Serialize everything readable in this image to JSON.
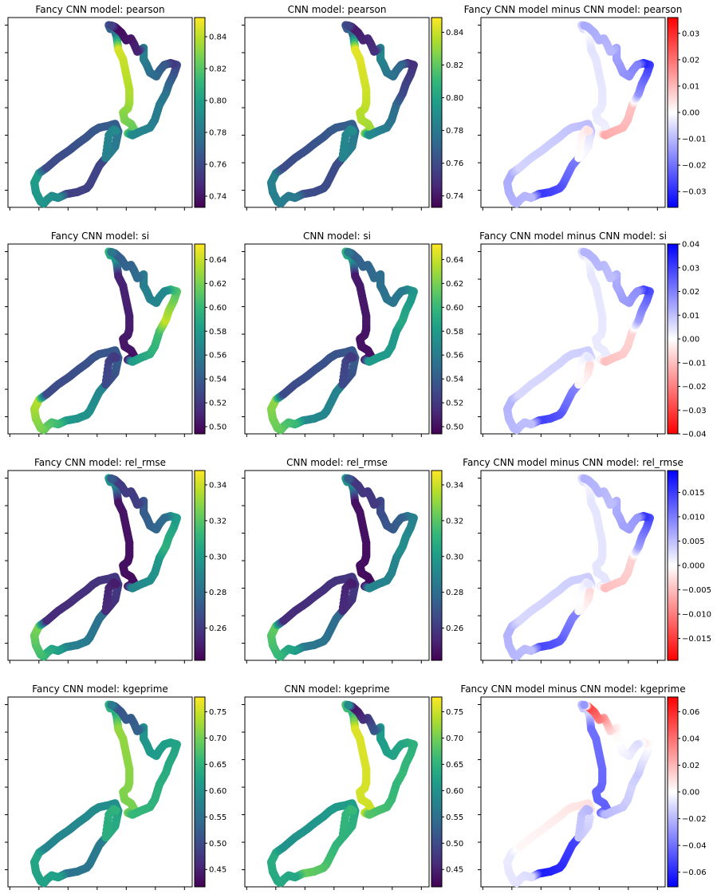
{
  "figure": {
    "colormaps": {
      "viridis": [
        "#440154",
        "#482878",
        "#3e4989",
        "#31688e",
        "#26828e",
        "#1f9e89",
        "#35b779",
        "#6ece58",
        "#b5de2b",
        "#fde725"
      ],
      "bwr": [
        "#ff0000",
        "#ffffff",
        "#0000ff"
      ]
    }
  },
  "chart_data": [
    {
      "type": "scatter",
      "title": "Fancy CNN model: pearson",
      "metric": "pearson",
      "colormap": "viridis",
      "clim": [
        0.733,
        0.852
      ],
      "colorbar_ticks": [
        "0.74",
        "0.76",
        "0.78",
        "0.80",
        "0.82",
        "0.84"
      ],
      "colorbar_tick_values": [
        0.74,
        0.76,
        0.78,
        0.8,
        0.82,
        0.84
      ],
      "segments": [
        {
          "from": 0,
          "to": 4,
          "start": 0.76,
          "end": 0.79
        },
        {
          "from": 4,
          "to": 15,
          "start": 0.845,
          "end": 0.82
        },
        {
          "from": 15,
          "to": 20,
          "start": 0.79,
          "end": 0.78
        },
        {
          "from": 20,
          "to": 25,
          "start": 0.78,
          "end": 0.745
        },
        {
          "from": 25,
          "to": 32,
          "start": 0.765,
          "end": 0.79
        },
        {
          "from": 32,
          "to": 38,
          "start": 0.745,
          "end": 0.735
        },
        {
          "from": 38,
          "to": 48,
          "start": 0.76,
          "end": 0.755
        },
        {
          "from": 48,
          "to": 56,
          "start": 0.79,
          "end": 0.8
        },
        {
          "from": 56,
          "to": 66,
          "start": 0.76,
          "end": 0.77
        },
        {
          "from": 66,
          "to": 72,
          "start": 0.78,
          "end": 0.79
        }
      ]
    },
    {
      "type": "scatter",
      "title": "CNN model: pearson",
      "metric": "pearson",
      "colormap": "viridis",
      "clim": [
        0.733,
        0.849
      ],
      "colorbar_ticks": [
        "0.74",
        "0.76",
        "0.78",
        "0.80",
        "0.82",
        "0.84"
      ],
      "colorbar_tick_values": [
        0.74,
        0.76,
        0.78,
        0.8,
        0.82,
        0.84
      ],
      "segments": [
        {
          "from": 0,
          "to": 4,
          "start": 0.76,
          "end": 0.78
        },
        {
          "from": 4,
          "to": 15,
          "start": 0.845,
          "end": 0.83
        },
        {
          "from": 15,
          "to": 20,
          "start": 0.79,
          "end": 0.77
        },
        {
          "from": 20,
          "to": 25,
          "start": 0.76,
          "end": 0.745
        },
        {
          "from": 25,
          "to": 32,
          "start": 0.77,
          "end": 0.79
        },
        {
          "from": 32,
          "to": 38,
          "start": 0.75,
          "end": 0.74
        },
        {
          "from": 38,
          "to": 48,
          "start": 0.76,
          "end": 0.76
        },
        {
          "from": 48,
          "to": 56,
          "start": 0.78,
          "end": 0.785
        },
        {
          "from": 56,
          "to": 66,
          "start": 0.76,
          "end": 0.77
        },
        {
          "from": 66,
          "to": 72,
          "start": 0.78,
          "end": 0.79
        }
      ]
    },
    {
      "type": "scatter",
      "title": "Fancy CNN model minus CNN model: pearson",
      "metric": "pearson",
      "colormap": "bwr",
      "clim": [
        -0.036,
        0.036
      ],
      "colorbar_ticks": [
        "−0.03",
        "−0.02",
        "−0.01",
        "0.00",
        "0.01",
        "0.02",
        "0.03"
      ],
      "colorbar_tick_values": [
        -0.03,
        -0.02,
        -0.01,
        0.0,
        0.01,
        0.02,
        0.03
      ],
      "segments": [
        {
          "from": 0,
          "to": 4,
          "start": -0.008,
          "end": 0.002
        },
        {
          "from": 4,
          "to": 15,
          "start": -0.004,
          "end": -0.002
        },
        {
          "from": 15,
          "to": 20,
          "start": 0.012,
          "end": 0.008
        },
        {
          "from": 20,
          "to": 25,
          "start": -0.015,
          "end": -0.035
        },
        {
          "from": 25,
          "to": 32,
          "start": -0.018,
          "end": -0.012
        },
        {
          "from": 32,
          "to": 38,
          "start": -0.01,
          "end": -0.012
        },
        {
          "from": 38,
          "to": 48,
          "start": -0.012,
          "end": -0.03
        },
        {
          "from": 48,
          "to": 56,
          "start": -0.01,
          "end": -0.012
        },
        {
          "from": 56,
          "to": 66,
          "start": -0.006,
          "end": -0.01
        },
        {
          "from": 66,
          "to": 72,
          "start": -0.004,
          "end": 0.004
        }
      ]
    },
    {
      "type": "scatter",
      "title": "Fancy CNN model: si",
      "metric": "si",
      "colormap": "viridis",
      "clim": [
        0.494,
        0.653
      ],
      "colorbar_ticks": [
        "0.50",
        "0.52",
        "0.54",
        "0.56",
        "0.58",
        "0.60",
        "0.62",
        "0.64"
      ],
      "colorbar_tick_values": [
        0.5,
        0.52,
        0.54,
        0.56,
        0.58,
        0.6,
        0.62,
        0.64
      ],
      "segments": [
        {
          "from": 0,
          "to": 4,
          "start": 0.6,
          "end": 0.57
        },
        {
          "from": 4,
          "to": 15,
          "start": 0.51,
          "end": 0.5
        },
        {
          "from": 15,
          "to": 20,
          "start": 0.58,
          "end": 0.61
        },
        {
          "from": 20,
          "to": 25,
          "start": 0.64,
          "end": 0.59
        },
        {
          "from": 25,
          "to": 32,
          "start": 0.57,
          "end": 0.56
        },
        {
          "from": 32,
          "to": 38,
          "start": 0.55,
          "end": 0.54
        },
        {
          "from": 38,
          "to": 48,
          "start": 0.56,
          "end": 0.58
        },
        {
          "from": 48,
          "to": 56,
          "start": 0.6,
          "end": 0.64
        },
        {
          "from": 56,
          "to": 66,
          "start": 0.53,
          "end": 0.54
        },
        {
          "from": 66,
          "to": 72,
          "start": 0.54,
          "end": 0.52
        }
      ]
    },
    {
      "type": "scatter",
      "title": "CNN model: si",
      "metric": "si",
      "colormap": "viridis",
      "clim": [
        0.494,
        0.653
      ],
      "colorbar_ticks": [
        "0.50",
        "0.52",
        "0.54",
        "0.56",
        "0.58",
        "0.60",
        "0.62",
        "0.64"
      ],
      "colorbar_tick_values": [
        0.5,
        0.52,
        0.54,
        0.56,
        0.58,
        0.6,
        0.62,
        0.64
      ],
      "segments": [
        {
          "from": 0,
          "to": 4,
          "start": 0.6,
          "end": 0.57
        },
        {
          "from": 4,
          "to": 15,
          "start": 0.505,
          "end": 0.5
        },
        {
          "from": 15,
          "to": 20,
          "start": 0.58,
          "end": 0.58
        },
        {
          "from": 20,
          "to": 25,
          "start": 0.59,
          "end": 0.57
        },
        {
          "from": 25,
          "to": 32,
          "start": 0.56,
          "end": 0.55
        },
        {
          "from": 32,
          "to": 38,
          "start": 0.55,
          "end": 0.54
        },
        {
          "from": 38,
          "to": 48,
          "start": 0.56,
          "end": 0.57
        },
        {
          "from": 48,
          "to": 56,
          "start": 0.6,
          "end": 0.63
        },
        {
          "from": 56,
          "to": 66,
          "start": 0.53,
          "end": 0.54
        },
        {
          "from": 66,
          "to": 72,
          "start": 0.54,
          "end": 0.52
        }
      ]
    },
    {
      "type": "scatter",
      "title": "Fancy CNN model minus CNN model: si",
      "metric": "si",
      "colormap": "bwr_r",
      "clim": [
        -0.04,
        0.04
      ],
      "colorbar_ticks": [
        "−0.04",
        "−0.03",
        "−0.02",
        "−0.01",
        "0.00",
        "0.01",
        "0.02",
        "0.03",
        "0.04"
      ],
      "colorbar_tick_values": [
        -0.04,
        -0.03,
        -0.02,
        -0.01,
        0.0,
        0.01,
        0.02,
        0.03,
        0.04
      ],
      "segments": [
        {
          "from": 0,
          "to": 4,
          "start": 0.006,
          "end": 0.0
        },
        {
          "from": 4,
          "to": 15,
          "start": 0.004,
          "end": 0.003
        },
        {
          "from": 15,
          "to": 20,
          "start": -0.01,
          "end": -0.006
        },
        {
          "from": 20,
          "to": 25,
          "start": 0.014,
          "end": 0.035
        },
        {
          "from": 25,
          "to": 32,
          "start": 0.018,
          "end": 0.012
        },
        {
          "from": 32,
          "to": 38,
          "start": 0.01,
          "end": 0.012
        },
        {
          "from": 38,
          "to": 48,
          "start": 0.012,
          "end": 0.032
        },
        {
          "from": 48,
          "to": 56,
          "start": 0.01,
          "end": 0.012
        },
        {
          "from": 56,
          "to": 66,
          "start": 0.006,
          "end": 0.008
        },
        {
          "from": 66,
          "to": 72,
          "start": -0.006,
          "end": 0.004
        }
      ]
    },
    {
      "type": "scatter",
      "title": "Fancy CNN model: rel_rmse",
      "metric": "rel_rmse",
      "colormap": "viridis",
      "clim": [
        0.242,
        0.348
      ],
      "colorbar_ticks": [
        "0.26",
        "0.28",
        "0.30",
        "0.32",
        "0.34"
      ],
      "colorbar_tick_values": [
        0.26,
        0.28,
        0.3,
        0.32,
        0.34
      ],
      "segments": [
        {
          "from": 0,
          "to": 4,
          "start": 0.3,
          "end": 0.285
        },
        {
          "from": 4,
          "to": 15,
          "start": 0.248,
          "end": 0.245
        },
        {
          "from": 15,
          "to": 20,
          "start": 0.29,
          "end": 0.3
        },
        {
          "from": 20,
          "to": 25,
          "start": 0.31,
          "end": 0.295
        },
        {
          "from": 25,
          "to": 32,
          "start": 0.28,
          "end": 0.27
        },
        {
          "from": 32,
          "to": 38,
          "start": 0.262,
          "end": 0.26
        },
        {
          "from": 38,
          "to": 48,
          "start": 0.275,
          "end": 0.29
        },
        {
          "from": 48,
          "to": 56,
          "start": 0.3,
          "end": 0.33
        },
        {
          "from": 56,
          "to": 66,
          "start": 0.255,
          "end": 0.26
        },
        {
          "from": 66,
          "to": 72,
          "start": 0.26,
          "end": 0.25
        }
      ]
    },
    {
      "type": "scatter",
      "title": "CNN model: rel_rmse",
      "metric": "rel_rmse",
      "colormap": "viridis",
      "clim": [
        0.242,
        0.348
      ],
      "colorbar_ticks": [
        "0.26",
        "0.28",
        "0.30",
        "0.32",
        "0.34"
      ],
      "colorbar_tick_values": [
        0.26,
        0.28,
        0.3,
        0.32,
        0.34
      ],
      "segments": [
        {
          "from": 0,
          "to": 4,
          "start": 0.3,
          "end": 0.285
        },
        {
          "from": 4,
          "to": 15,
          "start": 0.247,
          "end": 0.245
        },
        {
          "from": 15,
          "to": 20,
          "start": 0.29,
          "end": 0.29
        },
        {
          "from": 20,
          "to": 25,
          "start": 0.295,
          "end": 0.285
        },
        {
          "from": 25,
          "to": 32,
          "start": 0.275,
          "end": 0.265
        },
        {
          "from": 32,
          "to": 38,
          "start": 0.26,
          "end": 0.258
        },
        {
          "from": 38,
          "to": 48,
          "start": 0.275,
          "end": 0.285
        },
        {
          "from": 48,
          "to": 56,
          "start": 0.3,
          "end": 0.325
        },
        {
          "from": 56,
          "to": 66,
          "start": 0.255,
          "end": 0.26
        },
        {
          "from": 66,
          "to": 72,
          "start": 0.26,
          "end": 0.25
        }
      ]
    },
    {
      "type": "scatter",
      "title": "Fancy CNN model minus CNN model: rel_rmse",
      "metric": "rel_rmse",
      "colormap": "bwr_r",
      "clim": [
        -0.0195,
        0.0195
      ],
      "colorbar_ticks": [
        "−0.015",
        "−0.010",
        "−0.005",
        "0.000",
        "0.005",
        "0.010",
        "0.015"
      ],
      "colorbar_tick_values": [
        -0.015,
        -0.01,
        -0.005,
        0.0,
        0.005,
        0.01,
        0.015
      ],
      "segments": [
        {
          "from": 0,
          "to": 4,
          "start": 0.003,
          "end": 0.0
        },
        {
          "from": 4,
          "to": 15,
          "start": 0.002,
          "end": 0.002
        },
        {
          "from": 15,
          "to": 20,
          "start": -0.005,
          "end": -0.003
        },
        {
          "from": 20,
          "to": 25,
          "start": 0.007,
          "end": 0.018
        },
        {
          "from": 25,
          "to": 32,
          "start": 0.008,
          "end": 0.006
        },
        {
          "from": 32,
          "to": 38,
          "start": 0.005,
          "end": 0.006
        },
        {
          "from": 38,
          "to": 48,
          "start": 0.006,
          "end": 0.015
        },
        {
          "from": 48,
          "to": 56,
          "start": 0.005,
          "end": 0.006
        },
        {
          "from": 56,
          "to": 66,
          "start": 0.003,
          "end": 0.004
        },
        {
          "from": 66,
          "to": 72,
          "start": -0.003,
          "end": 0.002
        }
      ]
    },
    {
      "type": "scatter",
      "title": "Fancy CNN model: kgeprime",
      "metric": "kgeprime",
      "colormap": "viridis",
      "clim": [
        0.417,
        0.778
      ],
      "colorbar_ticks": [
        "0.45",
        "0.50",
        "0.55",
        "0.60",
        "0.65",
        "0.70",
        "0.75"
      ],
      "colorbar_tick_values": [
        0.45,
        0.5,
        0.55,
        0.6,
        0.65,
        0.7,
        0.75
      ],
      "segments": [
        {
          "from": 0,
          "to": 4,
          "start": 0.65,
          "end": 0.64
        },
        {
          "from": 4,
          "to": 15,
          "start": 0.72,
          "end": 0.7
        },
        {
          "from": 15,
          "to": 20,
          "start": 0.66,
          "end": 0.64
        },
        {
          "from": 20,
          "to": 25,
          "start": 0.64,
          "end": 0.62
        },
        {
          "from": 25,
          "to": 32,
          "start": 0.62,
          "end": 0.6
        },
        {
          "from": 32,
          "to": 38,
          "start": 0.53,
          "end": 0.51
        },
        {
          "from": 38,
          "to": 48,
          "start": 0.58,
          "end": 0.55
        },
        {
          "from": 48,
          "to": 56,
          "start": 0.62,
          "end": 0.63
        },
        {
          "from": 56,
          "to": 66,
          "start": 0.58,
          "end": 0.6
        },
        {
          "from": 66,
          "to": 72,
          "start": 0.63,
          "end": 0.65
        }
      ]
    },
    {
      "type": "scatter",
      "title": "CNN model: kgeprime",
      "metric": "kgeprime",
      "colormap": "viridis",
      "clim": [
        0.417,
        0.778
      ],
      "colorbar_ticks": [
        "0.45",
        "0.50",
        "0.55",
        "0.60",
        "0.65",
        "0.70",
        "0.75"
      ],
      "colorbar_tick_values": [
        0.45,
        0.5,
        0.55,
        0.6,
        0.65,
        0.7,
        0.75
      ],
      "segments": [
        {
          "from": 0,
          "to": 4,
          "start": 0.67,
          "end": 0.65
        },
        {
          "from": 4,
          "to": 15,
          "start": 0.76,
          "end": 0.75
        },
        {
          "from": 15,
          "to": 20,
          "start": 0.68,
          "end": 0.65
        },
        {
          "from": 20,
          "to": 25,
          "start": 0.66,
          "end": 0.64
        },
        {
          "from": 25,
          "to": 32,
          "start": 0.63,
          "end": 0.61
        },
        {
          "from": 32,
          "to": 38,
          "start": 0.52,
          "end": 0.42
        },
        {
          "from": 38,
          "to": 48,
          "start": 0.62,
          "end": 0.7
        },
        {
          "from": 48,
          "to": 56,
          "start": 0.63,
          "end": 0.64
        },
        {
          "from": 56,
          "to": 66,
          "start": 0.6,
          "end": 0.62
        },
        {
          "from": 66,
          "to": 72,
          "start": 0.64,
          "end": 0.66
        }
      ]
    },
    {
      "type": "scatter",
      "title": "Fancy CNN model minus CNN model: kgeprime",
      "metric": "kgeprime",
      "colormap": "bwr",
      "clim": [
        -0.071,
        0.071
      ],
      "colorbar_ticks": [
        "−0.06",
        "−0.04",
        "−0.02",
        "0.00",
        "0.02",
        "0.04",
        "0.06"
      ],
      "colorbar_tick_values": [
        -0.06,
        -0.04,
        -0.02,
        0.0,
        0.02,
        0.04,
        0.06
      ],
      "segments": [
        {
          "from": 0,
          "to": 4,
          "start": -0.02,
          "end": -0.01
        },
        {
          "from": 4,
          "to": 15,
          "start": -0.04,
          "end": -0.045
        },
        {
          "from": 15,
          "to": 20,
          "start": -0.02,
          "end": -0.01
        },
        {
          "from": 20,
          "to": 25,
          "start": -0.015,
          "end": 0.01
        },
        {
          "from": 25,
          "to": 32,
          "start": -0.01,
          "end": 0.005
        },
        {
          "from": 32,
          "to": 38,
          "start": 0.01,
          "end": 0.06
        },
        {
          "from": 38,
          "to": 48,
          "start": -0.045,
          "end": -0.065
        },
        {
          "from": 48,
          "to": 56,
          "start": -0.01,
          "end": -0.005
        },
        {
          "from": 56,
          "to": 66,
          "start": 0.002,
          "end": 0.01
        },
        {
          "from": 66,
          "to": 72,
          "start": -0.01,
          "end": -0.02
        }
      ]
    }
  ]
}
